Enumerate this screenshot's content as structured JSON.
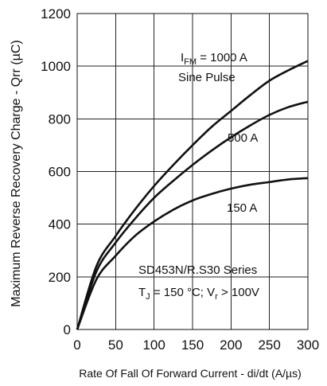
{
  "chart_data": {
    "type": "line",
    "xlabel": "Rate Of Fall Of Forward Current - di/dt (A/µs)",
    "ylabel": "Maximum Reverse Recovery Charge - Qrr (µC)",
    "xlim": [
      0,
      300
    ],
    "ylim": [
      0,
      1200
    ],
    "x_ticks": [
      0,
      50,
      100,
      150,
      200,
      250,
      300
    ],
    "y_ticks": [
      0,
      200,
      400,
      600,
      800,
      1000,
      1200
    ],
    "grid": true,
    "x": [
      0,
      25,
      50,
      75,
      100,
      125,
      150,
      175,
      200,
      225,
      250,
      275,
      300
    ],
    "series": [
      {
        "name": "I",
        "values": [
          0,
          240,
          355,
          455,
          545,
          625,
          700,
          770,
          830,
          890,
          945,
          985,
          1020
        ]
      },
      {
        "name": "500 A",
        "values": [
          0,
          220,
          330,
          420,
          500,
          565,
          625,
          680,
          730,
          775,
          815,
          845,
          865
        ]
      },
      {
        "name": "150 A",
        "values": [
          0,
          190,
          280,
          355,
          410,
          455,
          490,
          515,
          535,
          550,
          560,
          570,
          575
        ]
      }
    ],
    "annotations": {
      "series1_sub": "FM",
      "series1_tail": " = 1000 A",
      "pulse": "Sine Pulse",
      "label_500": "500 A",
      "label_150": "150 A",
      "series_title": "SD453N/R.S30 Series",
      "cond_t": "T",
      "cond_t_sub": "J",
      "cond_mid": " = 150 °C; V",
      "cond_v_sub": "r",
      "cond_tail": " > 100V"
    }
  }
}
